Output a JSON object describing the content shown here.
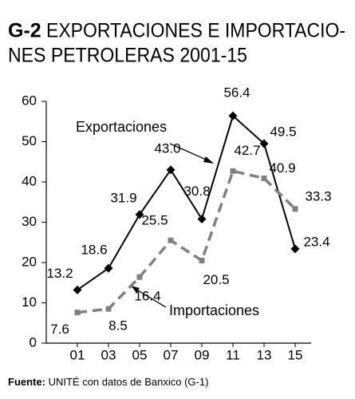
{
  "chart_data": {
    "type": "line",
    "title_prefix": "G-2",
    "title": [
      "EXPORTACIONES E IMPORTACIO-",
      "NES PETROLERAS 2001-15"
    ],
    "categories": [
      "01",
      "03",
      "05",
      "07",
      "09",
      "11",
      "13",
      "15"
    ],
    "series": [
      {
        "name": "Exportaciones",
        "color": "#000000",
        "style": "solid",
        "values": [
          13.2,
          18.6,
          31.9,
          43.0,
          30.8,
          56.4,
          49.5,
          23.4
        ],
        "value_labels": [
          "13.2",
          "18.6",
          "31.9",
          "43.0",
          "30.8",
          "56.4",
          "49.5",
          "23.4"
        ]
      },
      {
        "name": "Importaciones",
        "color": "#808080",
        "style": "dashed",
        "values": [
          7.6,
          8.5,
          16.4,
          25.5,
          20.5,
          42.7,
          40.9,
          33.3
        ],
        "value_labels": [
          "7.6",
          "8.5",
          "16.4",
          "25.5",
          "20.5",
          "42.7",
          "40.9",
          "33.3"
        ]
      }
    ],
    "ylim": [
      0,
      60
    ],
    "yticks": [
      0,
      10,
      20,
      30,
      40,
      50,
      60
    ],
    "grid": false,
    "source_label": "Fuente:",
    "source": "UNITÉ con datos de Banxico (G-1)"
  }
}
